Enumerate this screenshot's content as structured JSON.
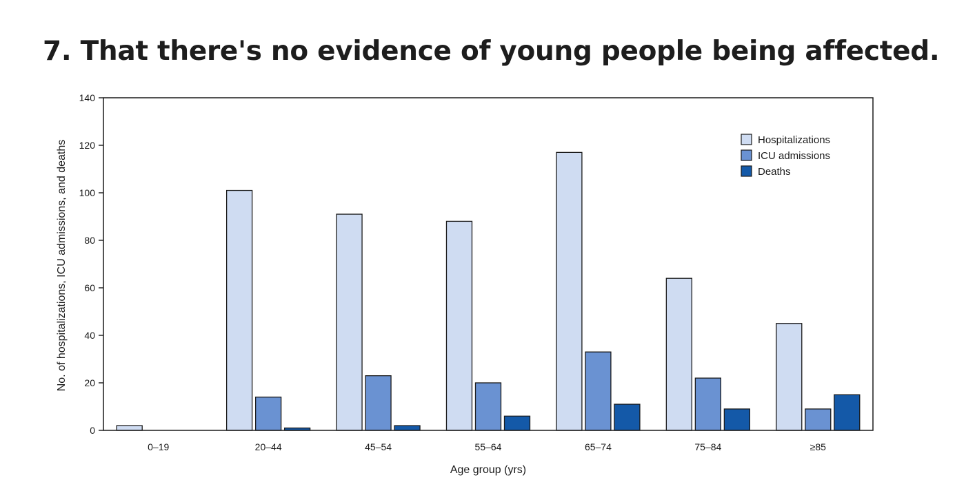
{
  "page": {
    "headline": "7. That there's no evidence of young people being affected."
  },
  "chart_data": {
    "type": "bar",
    "title": "",
    "xlabel": "Age group (yrs)",
    "ylabel": "No. of hospitalizations, ICU admissions, and deaths",
    "ylim": [
      0,
      140
    ],
    "yticks": [
      0,
      20,
      40,
      60,
      80,
      100,
      120,
      140
    ],
    "grid": false,
    "legend_position": "top-right",
    "categories": [
      "0–19",
      "20–44",
      "45–54",
      "55–64",
      "65–74",
      "75–84",
      "≥85"
    ],
    "series": [
      {
        "name": "Hospitalizations",
        "color": "#cfdcf2",
        "values": [
          2,
          101,
          91,
          88,
          117,
          64,
          45
        ]
      },
      {
        "name": "ICU admissions",
        "color": "#6a92d2",
        "values": [
          0,
          14,
          23,
          20,
          33,
          22,
          9
        ]
      },
      {
        "name": "Deaths",
        "color": "#1459a8",
        "values": [
          0,
          1,
          2,
          6,
          11,
          9,
          15
        ]
      }
    ]
  }
}
